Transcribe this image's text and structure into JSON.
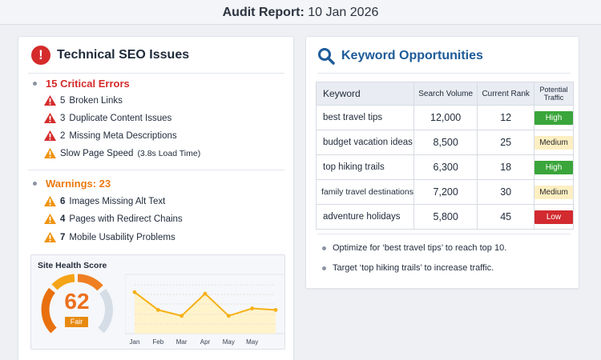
{
  "header": {
    "title_bold": "Audit Report:",
    "title_date": "10 Jan 2026"
  },
  "technical": {
    "title": "Technical SEO Issues",
    "icon": "alert-circle-icon",
    "critical": {
      "heading": "15 Critical Errors",
      "color": "#d52b2b",
      "items": [
        {
          "num": "5",
          "text": "Broken Links",
          "severity": "error"
        },
        {
          "num": "3",
          "text": "Duplicate Content Issues",
          "severity": "error"
        },
        {
          "num": "2",
          "text": "Missing Meta Descriptions",
          "severity": "error"
        },
        {
          "num": "",
          "text": "Slow Page Speed",
          "detail": "(3.8s Load Time)",
          "severity": "warning"
        }
      ]
    },
    "warnings": {
      "heading": "Warnings: 23",
      "color": "#ec7a12",
      "items": [
        {
          "num": "6",
          "text": "Images Missing Alt Text",
          "severity": "warning"
        },
        {
          "num": "4",
          "text": "Pages with Redirect Chains",
          "severity": "warning"
        },
        {
          "num": "7",
          "text": "Mobile Usability Problems",
          "severity": "warning"
        }
      ]
    },
    "health": {
      "title": "Site Health Score",
      "score": "62",
      "label": "Fair"
    }
  },
  "chart_data": {
    "type": "line",
    "title": "Site Health Score",
    "categories": [
      "Jan",
      "Feb",
      "Mar",
      "Apr",
      "May",
      "May"
    ],
    "values": [
      68,
      56,
      52,
      67,
      52,
      57,
      56
    ],
    "note": "7 data points plotted; 6 tick labels visible",
    "grid": true,
    "ylim": [
      40,
      80
    ],
    "color": "#f5b014",
    "fill": "#fff3cc"
  },
  "keywords": {
    "title": "Keyword Opportunities",
    "icon": "search-icon",
    "columns": [
      "Keyword",
      "Search Volume",
      "Current Rank",
      "Potential Traffic"
    ],
    "rows": [
      {
        "keyword": "best travel tips",
        "volume": "12,000",
        "rank": "12",
        "traffic": "High"
      },
      {
        "keyword": "budget vacation ideas",
        "volume": "8,500",
        "rank": "25",
        "traffic": "Medium"
      },
      {
        "keyword": "top hiking trails",
        "volume": "6,300",
        "rank": "18",
        "traffic": "High"
      },
      {
        "keyword": "family travel destinations",
        "volume": "7,200",
        "rank": "30",
        "traffic": "Medium"
      },
      {
        "keyword": "adventure holidays",
        "volume": "5,800",
        "rank": "45",
        "traffic": "Low"
      }
    ],
    "recommendations": [
      "Optimize for ‘best travel tips’ to reach top 10.",
      "Target ‘top hiking trails’ to increase traffic."
    ]
  }
}
